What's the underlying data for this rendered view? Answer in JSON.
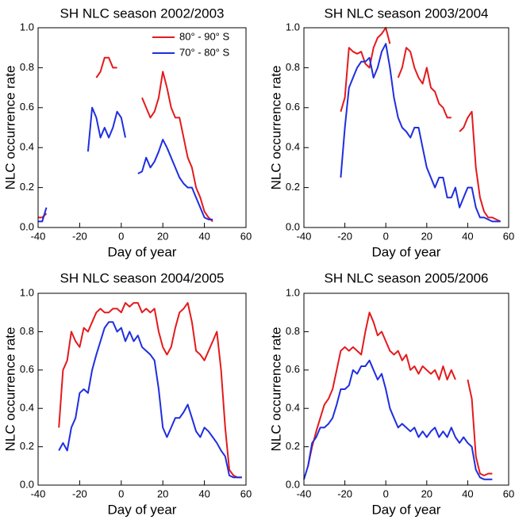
{
  "chart_data": [
    {
      "type": "line",
      "title": "SH NLC season 2002/2003",
      "xlabel": "Day of year",
      "ylabel": "NLC occurrence rate",
      "xlim": [
        -40,
        60
      ],
      "xticks": [
        -40,
        -20,
        0,
        20,
        40,
        60
      ],
      "ylim": [
        0,
        1
      ],
      "yticks": [
        {
          "value": 0,
          "label": "0.0"
        },
        0.2,
        0.4,
        0.6,
        0.8,
        {
          "value": 1,
          "label": "1.0"
        }
      ],
      "legend": "upper right",
      "x": [
        -40,
        -38,
        -36,
        -34,
        -32,
        -30,
        -28,
        -26,
        -24,
        -22,
        -20,
        -18,
        -16,
        -14,
        -12,
        -10,
        -8,
        -6,
        -4,
        -2,
        0,
        2,
        4,
        6,
        8,
        10,
        12,
        14,
        16,
        18,
        20,
        22,
        24,
        26,
        28,
        30,
        32,
        34,
        36,
        38,
        40,
        42,
        44,
        46,
        48,
        50,
        52,
        54,
        56,
        58
      ],
      "series": [
        {
          "name": "80° - 90° S",
          "color": "#e41a1c",
          "values": [
            0.05,
            0.05,
            0.07,
            null,
            null,
            null,
            null,
            null,
            null,
            null,
            null,
            null,
            null,
            null,
            0.75,
            0.78,
            0.85,
            0.85,
            0.8,
            0.8,
            null,
            null,
            null,
            null,
            null,
            0.65,
            0.6,
            0.55,
            0.58,
            0.65,
            0.78,
            0.7,
            0.6,
            0.55,
            0.55,
            0.45,
            0.35,
            0.3,
            0.2,
            0.15,
            0.08,
            0.05,
            0.03,
            null,
            null,
            null,
            null,
            null,
            null,
            null
          ]
        },
        {
          "name": "70° - 80° S",
          "color": "#1f2ee0",
          "values": [
            0.03,
            0.03,
            0.1,
            null,
            null,
            null,
            null,
            null,
            null,
            null,
            null,
            null,
            0.38,
            0.6,
            0.55,
            0.45,
            0.5,
            0.45,
            0.5,
            0.58,
            0.55,
            0.45,
            null,
            null,
            0.27,
            0.28,
            0.35,
            0.3,
            0.33,
            0.38,
            0.44,
            0.4,
            0.35,
            0.3,
            0.25,
            0.22,
            0.2,
            0.2,
            0.15,
            0.1,
            0.05,
            0.04,
            0.04,
            null,
            null,
            null,
            null,
            null,
            null,
            null
          ]
        }
      ]
    },
    {
      "type": "line",
      "title": "SH NLC season 2003/2004",
      "xlabel": "Day of year",
      "ylabel": "NLC occurrence rate",
      "xlim": [
        -40,
        60
      ],
      "xticks": [
        -40,
        -20,
        0,
        20,
        40,
        60
      ],
      "ylim": [
        0,
        1
      ],
      "yticks": [
        {
          "value": 0,
          "label": "0.0"
        },
        0.2,
        0.4,
        0.6,
        0.8,
        {
          "value": 1,
          "label": "1.0"
        }
      ],
      "x": [
        -40,
        -38,
        -36,
        -34,
        -32,
        -30,
        -28,
        -26,
        -24,
        -22,
        -20,
        -18,
        -16,
        -14,
        -12,
        -10,
        -8,
        -6,
        -4,
        -2,
        0,
        2,
        4,
        6,
        8,
        10,
        12,
        14,
        16,
        18,
        20,
        22,
        24,
        26,
        28,
        30,
        32,
        34,
        36,
        38,
        40,
        42,
        44,
        46,
        48,
        50,
        52,
        54,
        56,
        58
      ],
      "series": [
        {
          "color": "#e41a1c",
          "values": [
            null,
            null,
            null,
            null,
            null,
            null,
            null,
            null,
            null,
            0.58,
            0.65,
            0.9,
            0.88,
            0.87,
            0.88,
            0.82,
            0.8,
            0.9,
            0.95,
            0.97,
            1.0,
            0.92,
            null,
            0.75,
            0.8,
            0.9,
            0.88,
            0.8,
            0.75,
            0.72,
            0.8,
            0.7,
            0.68,
            0.62,
            0.6,
            0.55,
            0.55,
            null,
            0.48,
            0.5,
            0.55,
            0.58,
            0.3,
            0.15,
            0.08,
            0.05,
            0.05,
            0.04,
            0.03,
            null
          ]
        },
        {
          "color": "#1f2ee0",
          "values": [
            null,
            null,
            null,
            null,
            null,
            0.07,
            null,
            null,
            null,
            0.25,
            0.5,
            0.7,
            0.75,
            0.8,
            0.83,
            0.83,
            0.85,
            0.75,
            0.8,
            0.88,
            0.92,
            0.8,
            0.65,
            0.55,
            0.5,
            0.48,
            0.45,
            0.5,
            0.5,
            0.4,
            0.3,
            0.25,
            0.2,
            0.25,
            0.25,
            0.15,
            0.15,
            0.2,
            0.1,
            0.15,
            0.2,
            0.2,
            0.1,
            0.05,
            0.05,
            0.04,
            0.03,
            0.03,
            0.03,
            null
          ]
        }
      ]
    },
    {
      "type": "line",
      "title": "SH NLC season 2004/2005",
      "xlabel": "Day of year",
      "ylabel": "NLC occurrence rate",
      "xlim": [
        -40,
        60
      ],
      "xticks": [
        -40,
        -20,
        0,
        20,
        40,
        60
      ],
      "ylim": [
        0,
        1
      ],
      "yticks": [
        {
          "value": 0,
          "label": "0.0"
        },
        0.2,
        0.4,
        0.6,
        0.8,
        {
          "value": 1,
          "label": "1.0"
        }
      ],
      "x": [
        -40,
        -38,
        -36,
        -34,
        -32,
        -30,
        -28,
        -26,
        -24,
        -22,
        -20,
        -18,
        -16,
        -14,
        -12,
        -10,
        -8,
        -6,
        -4,
        -2,
        0,
        2,
        4,
        6,
        8,
        10,
        12,
        14,
        16,
        18,
        20,
        22,
        24,
        26,
        28,
        30,
        32,
        34,
        36,
        38,
        40,
        42,
        44,
        46,
        48,
        50,
        52,
        54,
        56,
        58
      ],
      "series": [
        {
          "color": "#e41a1c",
          "values": [
            null,
            null,
            null,
            null,
            null,
            0.3,
            0.6,
            0.65,
            0.8,
            0.75,
            0.72,
            0.82,
            0.8,
            0.85,
            0.9,
            0.92,
            0.9,
            0.9,
            0.92,
            0.92,
            0.9,
            0.95,
            0.93,
            0.95,
            0.95,
            0.9,
            0.92,
            0.9,
            0.92,
            0.8,
            0.72,
            0.68,
            0.72,
            0.82,
            0.9,
            0.92,
            0.95,
            0.85,
            0.7,
            0.68,
            0.65,
            0.7,
            0.75,
            0.8,
            0.6,
            0.3,
            0.08,
            0.05,
            0.04,
            0.04
          ]
        },
        {
          "color": "#1f2ee0",
          "values": [
            null,
            null,
            null,
            null,
            null,
            0.18,
            0.22,
            0.18,
            0.3,
            0.35,
            0.48,
            0.5,
            0.48,
            0.6,
            0.68,
            0.75,
            0.82,
            0.85,
            0.85,
            0.8,
            0.82,
            0.75,
            0.8,
            0.75,
            0.78,
            0.72,
            0.7,
            0.68,
            0.65,
            0.5,
            0.3,
            0.25,
            0.3,
            0.35,
            0.35,
            0.38,
            0.42,
            0.35,
            0.28,
            0.25,
            0.3,
            0.28,
            0.25,
            0.22,
            0.18,
            0.15,
            0.05,
            0.04,
            0.04,
            0.04
          ]
        }
      ]
    },
    {
      "type": "line",
      "title": "SH NLC season 2005/2006",
      "xlabel": "Day of year",
      "ylabel": "NLC occurrence rate",
      "xlim": [
        -40,
        60
      ],
      "xticks": [
        -40,
        -20,
        0,
        20,
        40,
        60
      ],
      "ylim": [
        0,
        1
      ],
      "yticks": [
        {
          "value": 0,
          "label": "0.0"
        },
        0.2,
        0.4,
        0.6,
        0.8,
        {
          "value": 1,
          "label": "1.0"
        }
      ],
      "x": [
        -40,
        -38,
        -36,
        -34,
        -32,
        -30,
        -28,
        -26,
        -24,
        -22,
        -20,
        -18,
        -16,
        -14,
        -12,
        -10,
        -8,
        -6,
        -4,
        -2,
        0,
        2,
        4,
        6,
        8,
        10,
        12,
        14,
        16,
        18,
        20,
        22,
        24,
        26,
        28,
        30,
        32,
        34,
        36,
        38,
        40,
        42,
        44,
        46,
        48,
        50,
        52,
        54,
        56,
        58
      ],
      "series": [
        {
          "color": "#e41a1c",
          "values": [
            null,
            0.1,
            0.2,
            0.28,
            0.35,
            0.42,
            0.45,
            0.5,
            0.6,
            0.7,
            0.72,
            0.7,
            0.72,
            0.7,
            0.68,
            0.8,
            0.9,
            0.85,
            0.78,
            0.8,
            0.75,
            0.7,
            0.68,
            0.7,
            0.65,
            0.68,
            0.6,
            0.62,
            0.58,
            0.62,
            0.6,
            0.58,
            0.6,
            0.55,
            0.62,
            0.55,
            0.6,
            0.55,
            null,
            null,
            0.55,
            0.45,
            0.15,
            0.06,
            0.05,
            0.06,
            0.06,
            null,
            null,
            null
          ]
        },
        {
          "color": "#1f2ee0",
          "values": [
            0.03,
            0.1,
            0.22,
            0.25,
            0.3,
            0.3,
            0.32,
            0.35,
            0.42,
            0.5,
            0.5,
            0.52,
            0.6,
            0.58,
            0.62,
            0.62,
            0.65,
            0.6,
            0.55,
            0.58,
            0.5,
            0.4,
            0.35,
            0.3,
            0.32,
            0.3,
            0.28,
            0.3,
            0.25,
            0.28,
            0.25,
            0.28,
            0.3,
            0.25,
            0.28,
            0.25,
            0.3,
            0.25,
            0.22,
            0.25,
            0.22,
            0.2,
            0.08,
            0.04,
            0.03,
            0.03,
            0.03,
            null,
            null,
            null
          ]
        }
      ]
    }
  ]
}
